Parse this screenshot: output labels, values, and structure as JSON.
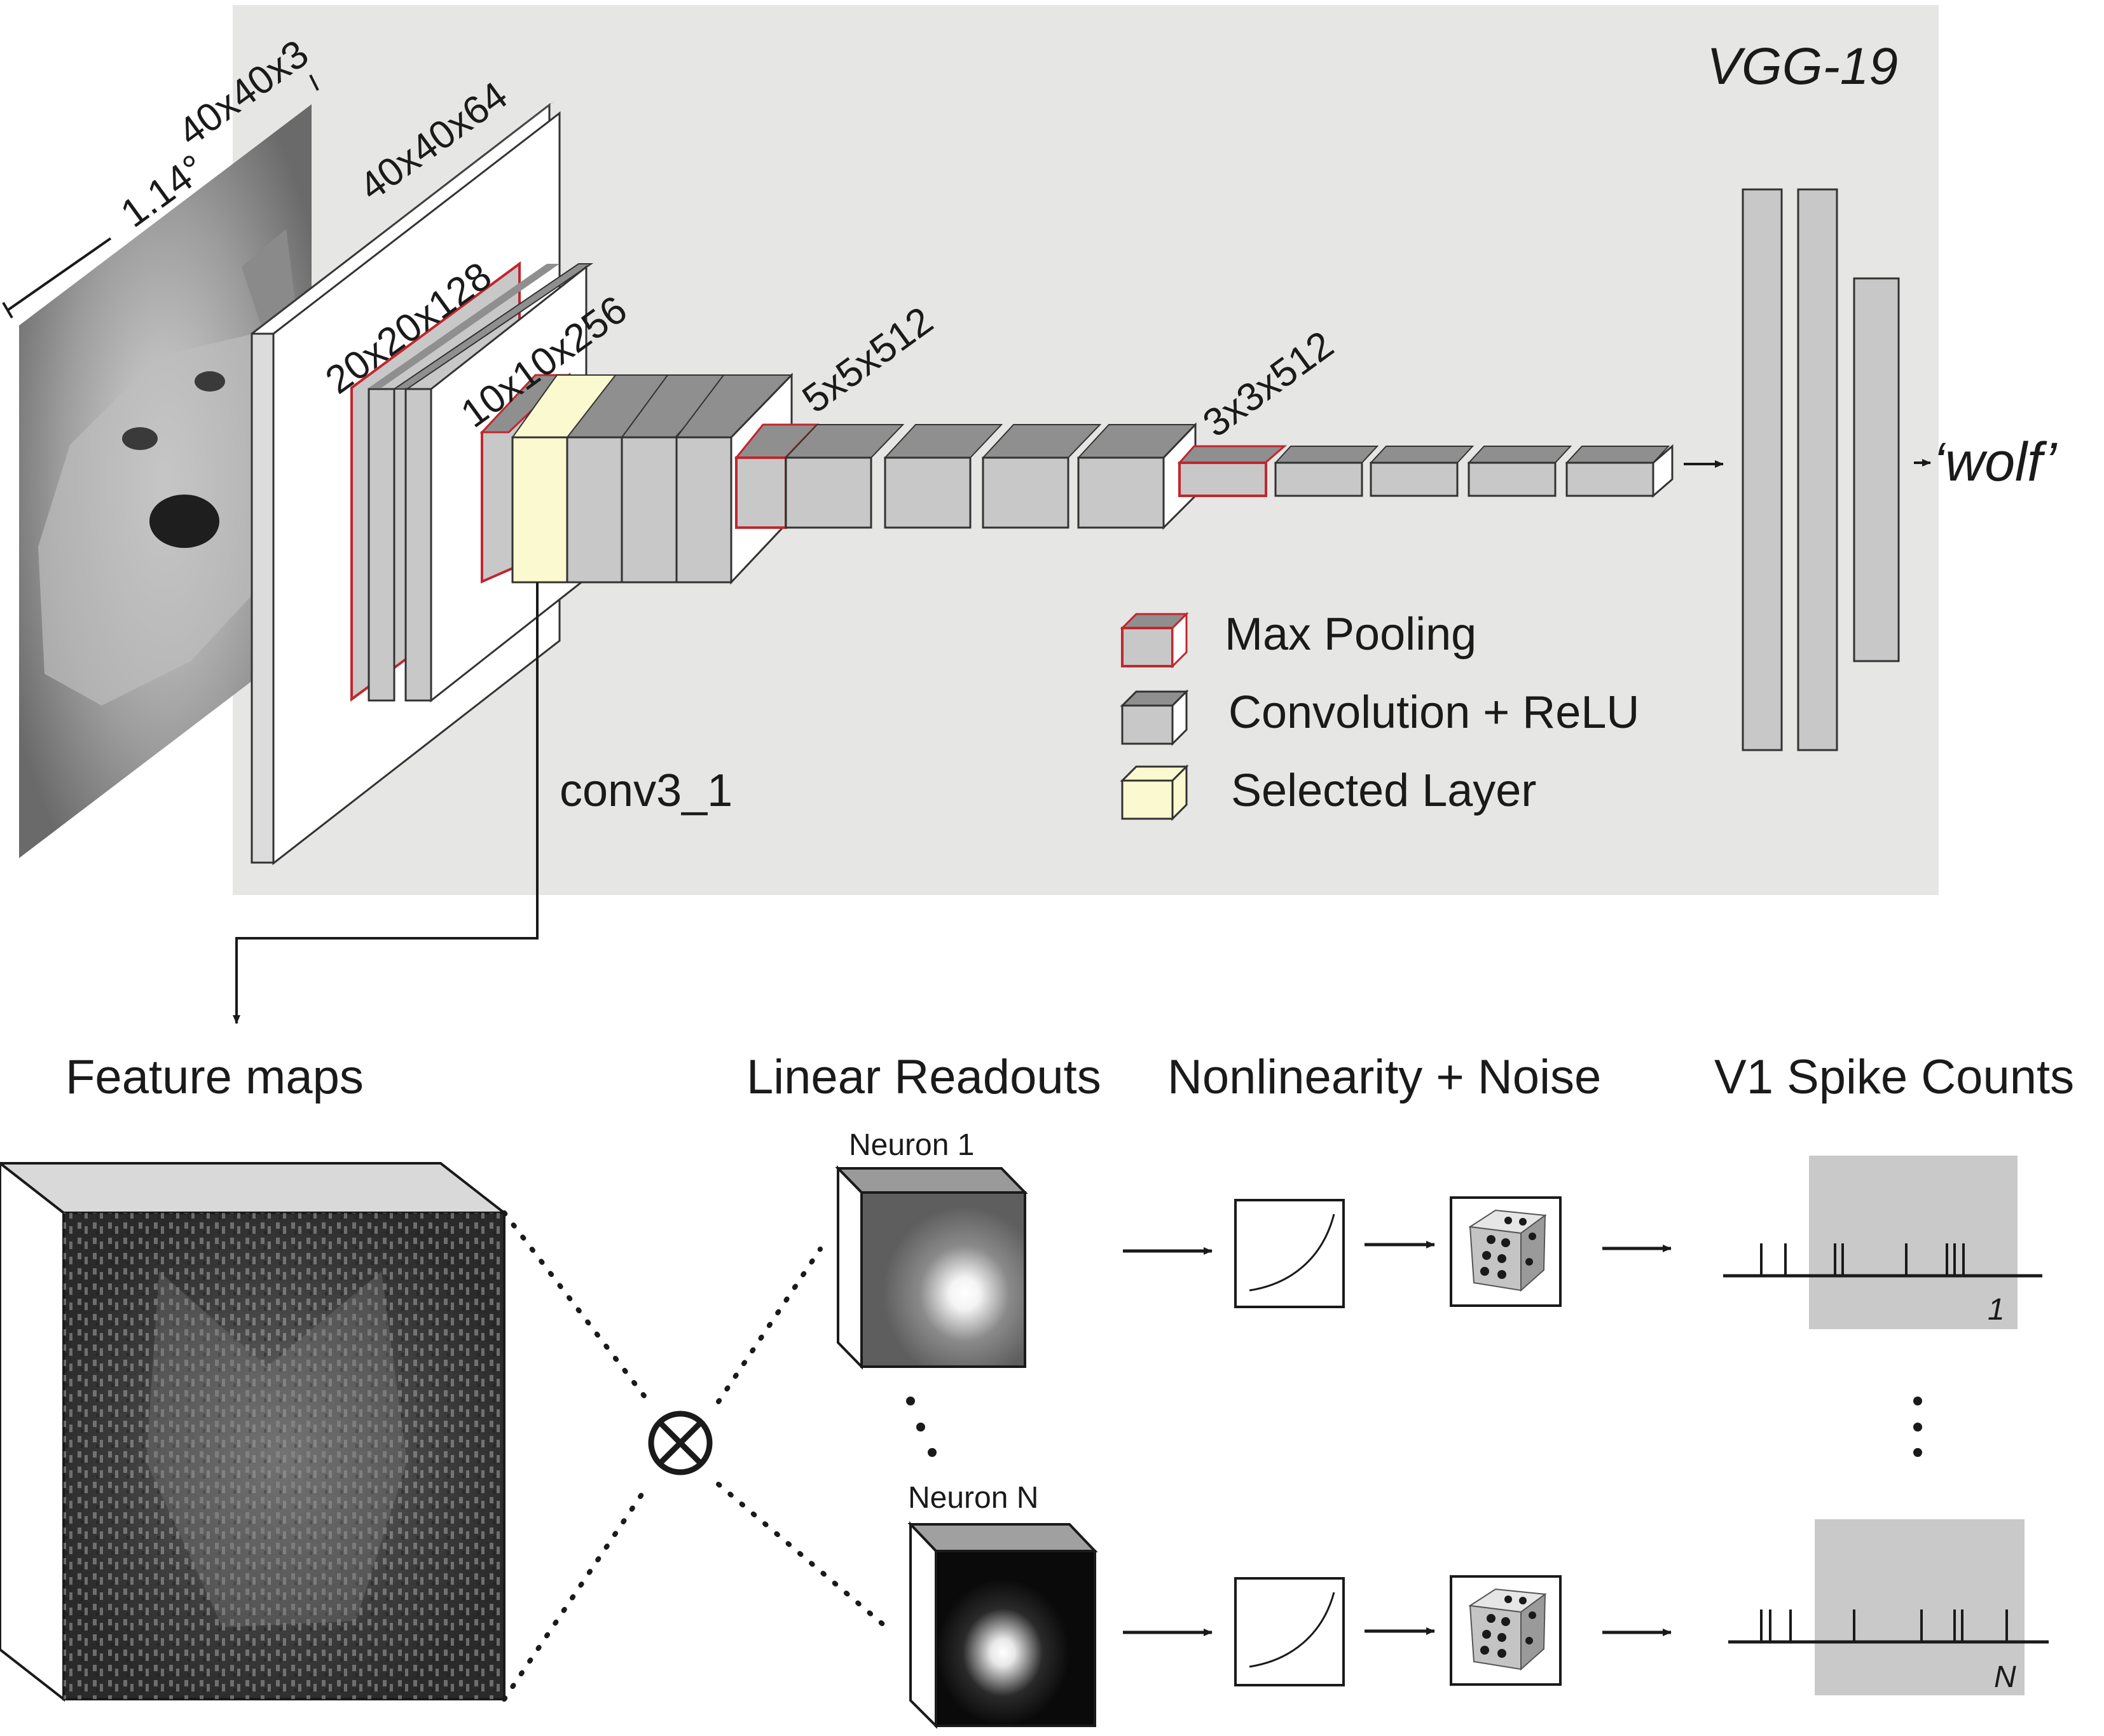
{
  "vgg": {
    "network_name": "VGG-19",
    "output_label": "‘wolf’",
    "selected_layer_name": "conv3_1",
    "dims": {
      "input": "40x40x3",
      "visual_angle": "1.14°",
      "block1": "40x40x64",
      "block2": "20x20x128",
      "block3": "10x10x256",
      "block4": "5x5x512",
      "block5": "3x3x512"
    },
    "legend": {
      "max_pooling": "Max Pooling",
      "conv_relu": "Convolution + ReLU",
      "selected": "Selected Layer"
    }
  },
  "pipeline": {
    "feature_maps": "Feature maps",
    "linear_readouts": "Linear Readouts",
    "nonlinearity_noise": "Nonlinearity + Noise",
    "spike_counts": "V1 Spike Counts",
    "neuron_1": "Neuron 1",
    "neuron_n": "Neuron N",
    "trial_1": "1",
    "trial_n": "N",
    "product_symbol": "⊗"
  },
  "colors": {
    "panel_bg": "#e6e6e4",
    "pool_border": "#c0272d",
    "selected_fill": "#fbf9cf",
    "block_gray": "#c8c8c8",
    "block_top": "#8f8f8f",
    "spike_window": "#c9c9c9"
  }
}
